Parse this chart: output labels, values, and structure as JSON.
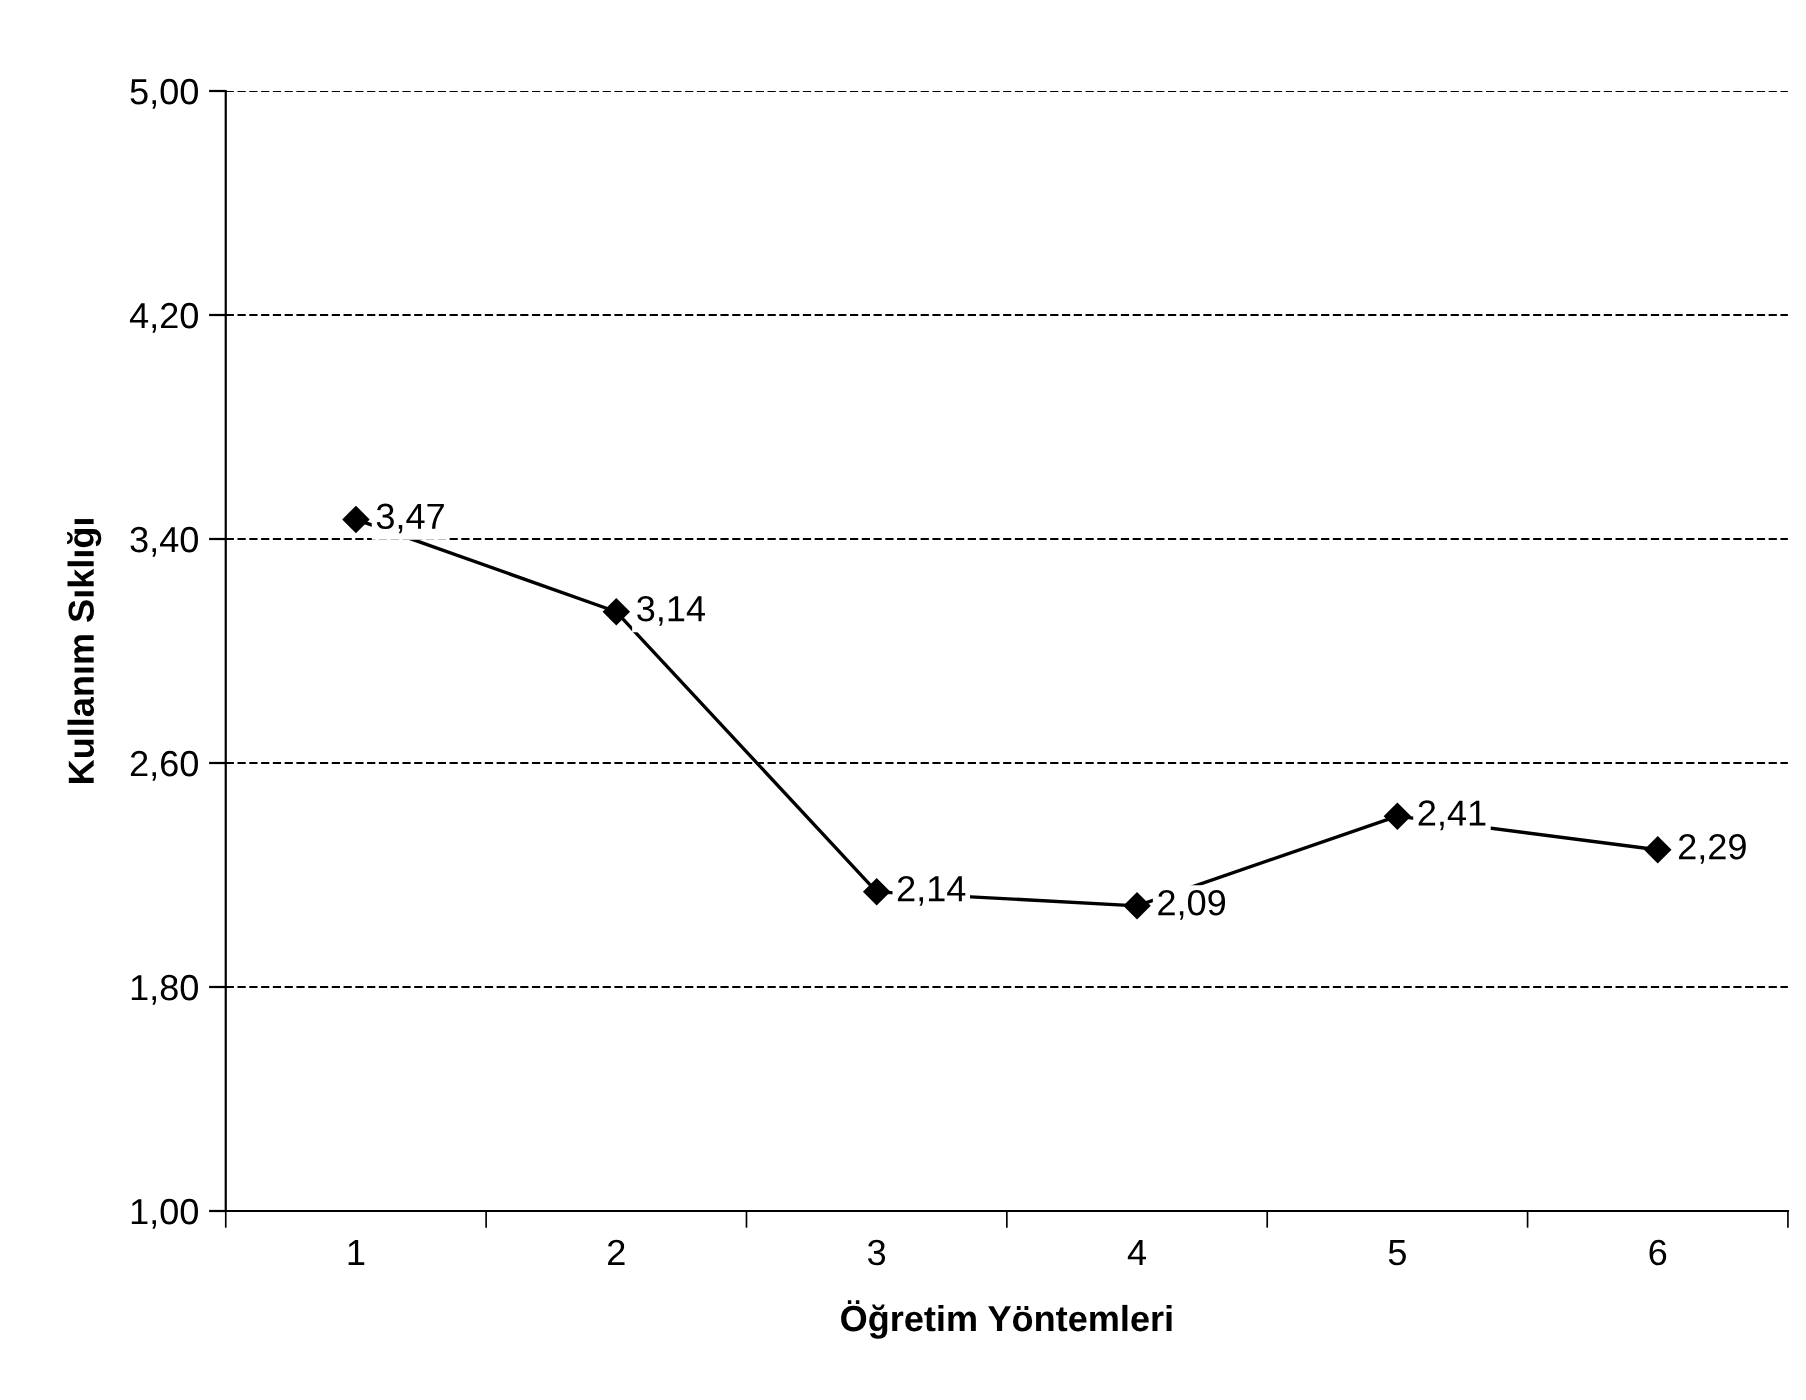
{
  "chart_data": {
    "type": "line",
    "xlabel": "Öğretim Yöntemleri",
    "ylabel": "Kullanım Sıklığı",
    "categories": [
      "1",
      "2",
      "3",
      "4",
      "5",
      "6"
    ],
    "series": [
      {
        "color": "#000000",
        "values": [
          3.47,
          3.14,
          2.14,
          2.09,
          2.41,
          2.29
        ],
        "value_labels": [
          "3,47",
          "3,14",
          "2,14",
          "2,09",
          "2,41",
          "2,29"
        ]
      }
    ],
    "ylim": [
      1.0,
      5.0
    ],
    "yticks": [
      {
        "value": 1.0,
        "label": "1,00"
      },
      {
        "value": 1.8,
        "label": "1,80"
      },
      {
        "value": 2.6,
        "label": "2,60"
      },
      {
        "value": 3.4,
        "label": "3,40"
      },
      {
        "value": 4.2,
        "label": "4,20"
      },
      {
        "value": 5.0,
        "label": "5,00"
      }
    ],
    "grid": "y",
    "legend": false,
    "marker": "diamond",
    "line_style": "solid"
  }
}
